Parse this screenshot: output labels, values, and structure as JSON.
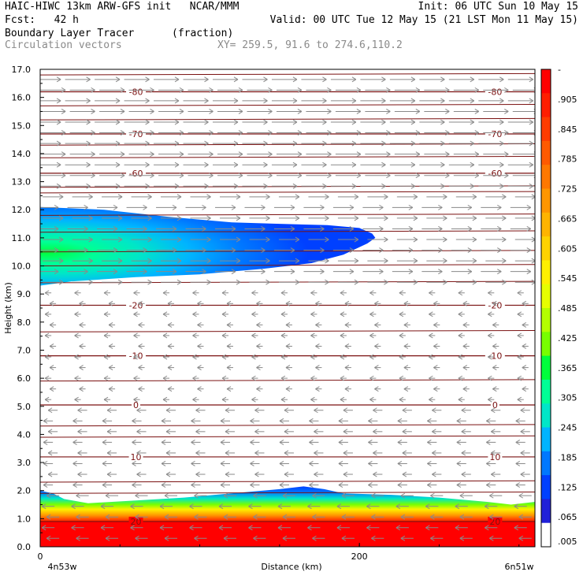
{
  "header": {
    "line1_left": "HAIC-HIWC 13km ARW-GFS init   NCAR/MMM",
    "line1_right": "Init: 06 UTC Sun 10 May 15",
    "line2_left": "Fcst:   42 h",
    "line2_right": "Valid: 00 UTC Tue 12 May 15 (21 LST Mon 11 May 15)",
    "line3_field": "Boundary Layer Tracer",
    "line3_units": "(fraction)",
    "line4_field": "Circulation vectors",
    "line4_xy": "XY= 259.5, 91.6 to 274.6,110.2"
  },
  "chart_data": {
    "type": "heatmap",
    "xlabel": "Distance (km)",
    "ylabel": "Height (km)",
    "xlim": [
      0,
      310
    ],
    "ylim": [
      0,
      17
    ],
    "x_ticks": [
      "0",
      "200"
    ],
    "x_end_labels": [
      "4n53w",
      "6n51w"
    ],
    "y_ticks": [
      "0.0",
      "1.0",
      "2.0",
      "3.0",
      "4.0",
      "5.0",
      "6.0",
      "7.0",
      "8.0",
      "9.0",
      "10.0",
      "11.0",
      "12.0",
      "13.0",
      "14.0",
      "15.0",
      "16.0",
      "17.0"
    ],
    "colorbar": {
      "labels": [
        "-",
        ".905",
        ".845",
        ".785",
        ".725",
        ".665",
        ".605",
        ".545",
        ".485",
        ".425",
        ".365",
        ".305",
        ".245",
        ".185",
        ".125",
        ".065",
        ".005"
      ],
      "colors": [
        "#ff0000",
        "#ff1e00",
        "#ff3c00",
        "#ff5a00",
        "#ff7800",
        "#ff9600",
        "#ffb400",
        "#ffd200",
        "#fff000",
        "#e6ff00",
        "#b4ff00",
        "#78ff00",
        "#00ff3c",
        "#00ff96",
        "#00e6c8",
        "#00b4ff",
        "#0078ff",
        "#0040ff",
        "#2020d8",
        "#ffffff"
      ]
    },
    "temperature_isotherms": [
      {
        "label": "20",
        "height": 0.9
      },
      {
        "label": "10",
        "height": 3.2
      },
      {
        "label": "0",
        "height": 5.05
      },
      {
        "label": "-10",
        "height": 6.8
      },
      {
        "label": "-20",
        "height": 8.6
      },
      {
        "label": "-60",
        "height": 13.3
      },
      {
        "label": "-70",
        "height": 14.7
      },
      {
        "label": "-80",
        "height": 16.2
      }
    ],
    "upper_plume": {
      "base_km": 9.3,
      "top_km": 12.1,
      "x_extent_km": [
        0,
        210
      ],
      "core_height_km": 10.6,
      "max_value": 0.35
    },
    "boundary_layer": {
      "top_km": 1.9,
      "saturated_top_km": 0.9,
      "max_value": 1.0
    },
    "vectors": {
      "upper_direction": "eastward",
      "upper_above_km": 9.3,
      "lower_direction": "westward",
      "lower_below_km": 9.3
    }
  },
  "colors": {
    "isotherm": "#7a1010",
    "vector": "#8a8a8a"
  }
}
